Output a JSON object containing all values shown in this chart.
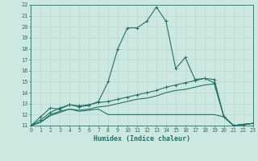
{
  "xlabel": "Humidex (Indice chaleur)",
  "xlim": [
    0,
    23
  ],
  "ylim": [
    11,
    22
  ],
  "bg": "#cce8e0",
  "grid_color": "#e0f0ec",
  "line_color": "#2a7068",
  "xticks": [
    0,
    1,
    2,
    3,
    4,
    5,
    6,
    7,
    8,
    9,
    10,
    11,
    12,
    13,
    14,
    15,
    16,
    17,
    18,
    19,
    20,
    21,
    22,
    23
  ],
  "yticks": [
    11,
    12,
    13,
    14,
    15,
    16,
    17,
    18,
    19,
    20,
    21,
    22
  ],
  "lines": [
    {
      "x": [
        0,
        1,
        2,
        3,
        4,
        5,
        6,
        7,
        8,
        9,
        10,
        11,
        12,
        13,
        14,
        15,
        16,
        17,
        18,
        19,
        20,
        21,
        22,
        23
      ],
      "y": [
        11.0,
        11.8,
        12.6,
        12.5,
        12.9,
        12.7,
        12.85,
        13.2,
        15.0,
        18.0,
        19.9,
        19.9,
        20.5,
        21.8,
        20.5,
        16.2,
        17.2,
        15.2,
        15.3,
        14.9,
        11.8,
        11.0,
        11.1,
        11.2
      ],
      "marker": true
    },
    {
      "x": [
        0,
        1,
        2,
        3,
        4,
        5,
        6,
        7,
        8,
        9,
        10,
        11,
        12,
        13,
        14,
        15,
        16,
        17,
        18,
        19,
        20,
        21,
        22,
        23
      ],
      "y": [
        11.0,
        11.5,
        12.2,
        12.6,
        12.9,
        12.8,
        12.9,
        13.1,
        13.2,
        13.4,
        13.6,
        13.8,
        14.0,
        14.2,
        14.5,
        14.7,
        14.9,
        15.1,
        15.3,
        15.2,
        11.8,
        11.0,
        11.1,
        11.2
      ],
      "marker": true
    },
    {
      "x": [
        0,
        1,
        2,
        3,
        4,
        5,
        6,
        7,
        8,
        9,
        10,
        11,
        12,
        13,
        14,
        15,
        16,
        17,
        18,
        19,
        20,
        21,
        22,
        23
      ],
      "y": [
        11.0,
        11.3,
        12.0,
        12.3,
        12.5,
        12.3,
        12.4,
        12.5,
        12.0,
        12.0,
        12.0,
        12.0,
        12.0,
        12.0,
        12.0,
        12.0,
        12.0,
        12.0,
        12.0,
        12.0,
        11.8,
        11.0,
        11.1,
        11.2
      ],
      "marker": false
    },
    {
      "x": [
        0,
        1,
        2,
        3,
        4,
        5,
        6,
        7,
        8,
        9,
        10,
        11,
        12,
        13,
        14,
        15,
        16,
        17,
        18,
        19,
        20,
        21,
        22,
        23
      ],
      "y": [
        11.0,
        11.3,
        11.9,
        12.2,
        12.5,
        12.4,
        12.5,
        12.7,
        12.8,
        13.0,
        13.2,
        13.4,
        13.5,
        13.7,
        14.0,
        14.2,
        14.3,
        14.5,
        14.7,
        14.8,
        11.8,
        11.0,
        11.1,
        11.2
      ],
      "marker": false
    }
  ]
}
